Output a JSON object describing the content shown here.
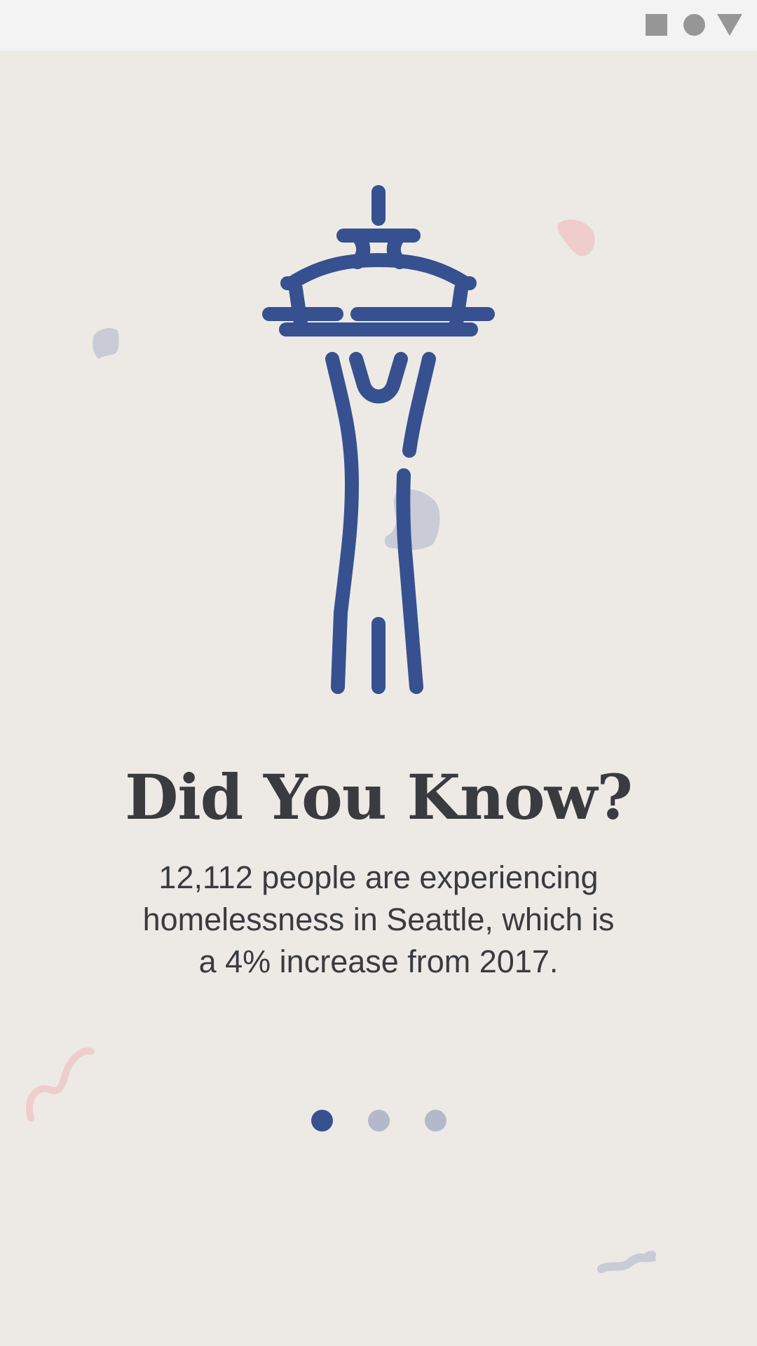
{
  "status_bar": {
    "icons": [
      "square-icon",
      "circle-icon",
      "triangle-icon"
    ]
  },
  "onboarding": {
    "illustration": "space-needle-icon",
    "title": "Did You Know?",
    "body": "12,112 people are experiencing homelessness in Seattle, which is a 4% increase from 2017.",
    "pager": {
      "total": 3,
      "active_index": 0
    }
  },
  "colors": {
    "background": "#edeae6",
    "accent": "#37508f",
    "text": "#3a3b3f",
    "dot_inactive": "#b4b8cb",
    "confetti_pink": "#efcdcd",
    "confetti_gray": "#c9cbd6"
  }
}
